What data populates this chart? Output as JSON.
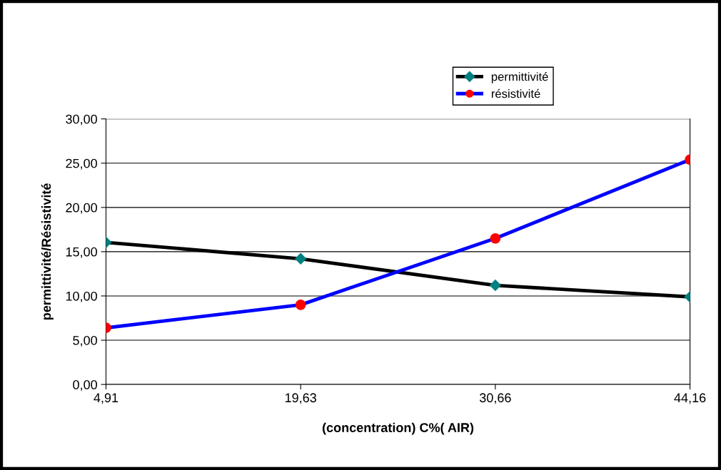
{
  "chart_data": {
    "type": "line",
    "xlabel": "(concentration) C%( AIR)",
    "ylabel": "permittivité/Résistivité",
    "categories": [
      "4,91",
      "19,63",
      "30,66",
      "44,16"
    ],
    "series": [
      {
        "name": "permittivité",
        "color": "#000000",
        "marker": "diamond",
        "colors": [
          "#008080",
          "#008080",
          "#008080",
          "#008080"
        ],
        "values": [
          16.05,
          14.2,
          11.2,
          9.9
        ]
      },
      {
        "name": "résistivité",
        "color": "#0000ff",
        "marker": "circle",
        "colors": [
          "#ff0000",
          "#ff0000",
          "#ff0000",
          "#ff0000"
        ],
        "values": [
          6.4,
          9.0,
          16.5,
          25.4
        ]
      }
    ],
    "ylim": [
      0,
      30
    ],
    "yticks": [
      {
        "value": 0,
        "label": "0,00"
      },
      {
        "value": 5,
        "label": "5,00"
      },
      {
        "value": 10,
        "label": "10,00"
      },
      {
        "value": 15,
        "label": "15,00"
      },
      {
        "value": 20,
        "label": "20,00"
      },
      {
        "value": 25,
        "label": "25,00"
      },
      {
        "value": 30,
        "label": "30,00"
      }
    ],
    "grid": "y",
    "legend": "top",
    "line_style": "solid"
  }
}
